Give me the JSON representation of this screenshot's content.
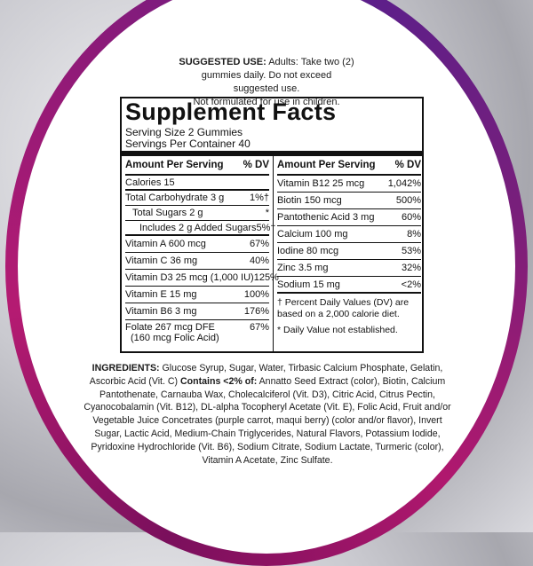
{
  "suggested_use": {
    "label": "SUGGESTED USE:",
    "line1": "Adults: Take two (2)",
    "line2": "gummies daily. Do not exceed suggested use.",
    "line3": "Not formulated for use in children."
  },
  "facts": {
    "title": "Supplement Facts",
    "serving_size": "Serving Size 2 Gummies",
    "servings_per_container": "Servings Per Container 40",
    "header_amount": "Amount Per Serving",
    "header_dv": "% DV",
    "left_rows": [
      {
        "name": "Calories 15",
        "dv": ""
      },
      {
        "name": "Total Carbohydrate 3 g",
        "dv": "1%†"
      },
      {
        "name": "Total Sugars 2 g",
        "dv": "*"
      },
      {
        "name": "Includes 2 g Added Sugars",
        "dv": "5%†"
      },
      {
        "name": "Vitamin A 600 mcg",
        "dv": "67%"
      },
      {
        "name": "Vitamin C 36 mg",
        "dv": "40%"
      },
      {
        "name": "Vitamin D3 25 mcg (1,000 IU)",
        "dv": "125%"
      },
      {
        "name": "Vitamin E 15 mg",
        "dv": "100%"
      },
      {
        "name": "Vitamin B6 3 mg",
        "dv": "176%"
      },
      {
        "name": "Folate 267 mcg DFE",
        "name2": "(160 mcg Folic Acid)",
        "dv": "67%"
      }
    ],
    "right_rows": [
      {
        "name": "Vitamin B12 25 mcg",
        "dv": "1,042%"
      },
      {
        "name": "Biotin 150 mcg",
        "dv": "500%"
      },
      {
        "name": "Pantothenic Acid 3 mg",
        "dv": "60%"
      },
      {
        "name": "Calcium 100 mg",
        "dv": "8%"
      },
      {
        "name": "Iodine 80 mcg",
        "dv": "53%"
      },
      {
        "name": "Zinc 3.5 mg",
        "dv": "32%"
      },
      {
        "name": "Sodium 15 mg",
        "dv": "<2%"
      }
    ],
    "footnote1": "† Percent Daily Values (DV) are based on a 2,000 calorie diet.",
    "footnote2": "* Daily Value not established."
  },
  "ingredients": {
    "label": "INGREDIENTS:",
    "text": "Glucose Syrup, Sugar, Water, Tirbasic Calcium Phosphate, Gelatin, Ascorbic Acid (Vit. C)",
    "contains_label": "Contains <2% of:",
    "contains_text": "Annatto Seed Extract (color), Biotin, Calcium Pantothenate, Carnauba Wax, Cholecalciferol (Vit. D3), Citric Acid, Citrus Pectin, Cyanocobalamin (Vit. B12), DL-alpha Tocopheryl Acetate (Vit. E), Folic Acid, Fruit and/or Vegetable Juice Concetrates (purple carrot, maqui berry) (color and/or flavor), Invert Sugar, Lactic Acid, Medium-Chain Triglycerides, Natural Flavors, Potassium Iodide, Pyridoxine Hydrochloride (Vit. B6), Sodium Citrate, Sodium Lactate, Turmeric (color), Vitamin A Acetate, Zinc Sulfate."
  }
}
